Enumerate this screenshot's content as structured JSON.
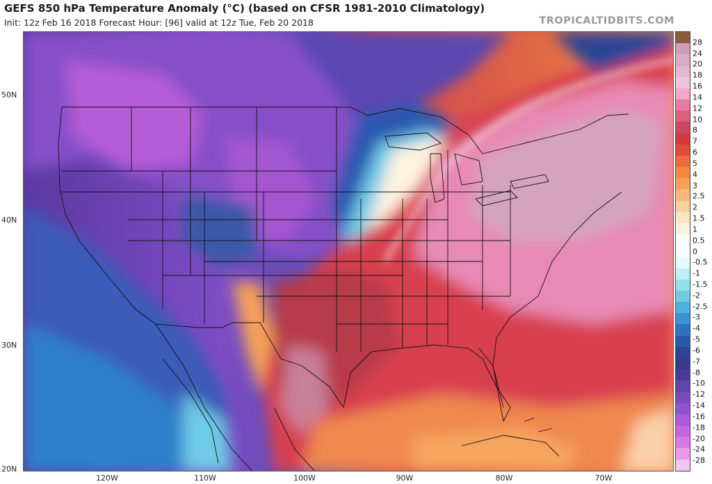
{
  "header": {
    "title": "GEFS 850 hPa Temperature Anomaly (°C) (based on CFSR 1981-2010 Climatology)",
    "subtitle": "Init: 12z Feb 16 2018   Forecast Hour: [96]   valid at 12z Tue, Feb 20 2018",
    "brand": "TROPICALTIDBITS.COM"
  },
  "map": {
    "type": "temperature-anomaly-map",
    "lat_labels": [
      "50N",
      "40N",
      "30N",
      "20N"
    ],
    "lon_labels": [
      "120W",
      "110W",
      "100W",
      "90W",
      "80W",
      "70W"
    ],
    "features": [
      "us-state-borders",
      "coastlines",
      "country-borders",
      "great-lakes"
    ]
  },
  "colorbar": {
    "labels": [
      "28",
      "24",
      "20",
      "18",
      "16",
      "14",
      "12",
      "10",
      "8",
      "7",
      "6",
      "5",
      "4",
      "3",
      "2.5",
      "2",
      "1.5",
      "1",
      "0.5",
      "0",
      "-0.5",
      "-1",
      "-1.5",
      "-2",
      "-2.5",
      "-3",
      "-4",
      "-5",
      "-6",
      "-7",
      "-8",
      "-10",
      "-12",
      "-14",
      "-16",
      "-18",
      "-20",
      "-24",
      "-28"
    ],
    "colors": [
      "#8b5a3c",
      "#c9a0b4",
      "#d9aac4",
      "#e4b8d0",
      "#eec6dc",
      "#f2a6cc",
      "#e87aa8",
      "#d9607f",
      "#c74860",
      "#d23a40",
      "#e04a38",
      "#ec6a3c",
      "#f2893f",
      "#f6a05a",
      "#f8b97a",
      "#fad09c",
      "#fde4c2",
      "#fff2e0",
      "#ffffff",
      "#ffffff",
      "#e6fbfb",
      "#bff0f5",
      "#96e0ee",
      "#6fcbe6",
      "#4eb2de",
      "#3a92d2",
      "#2e72c0",
      "#2a58a8",
      "#2c4495",
      "#3a3a8c",
      "#4c3a98",
      "#6244aa",
      "#7a4cbd",
      "#9254cc",
      "#aa5cd8",
      "#c466de",
      "#d878e2",
      "#e89ae8",
      "#f4c4f2"
    ]
  }
}
